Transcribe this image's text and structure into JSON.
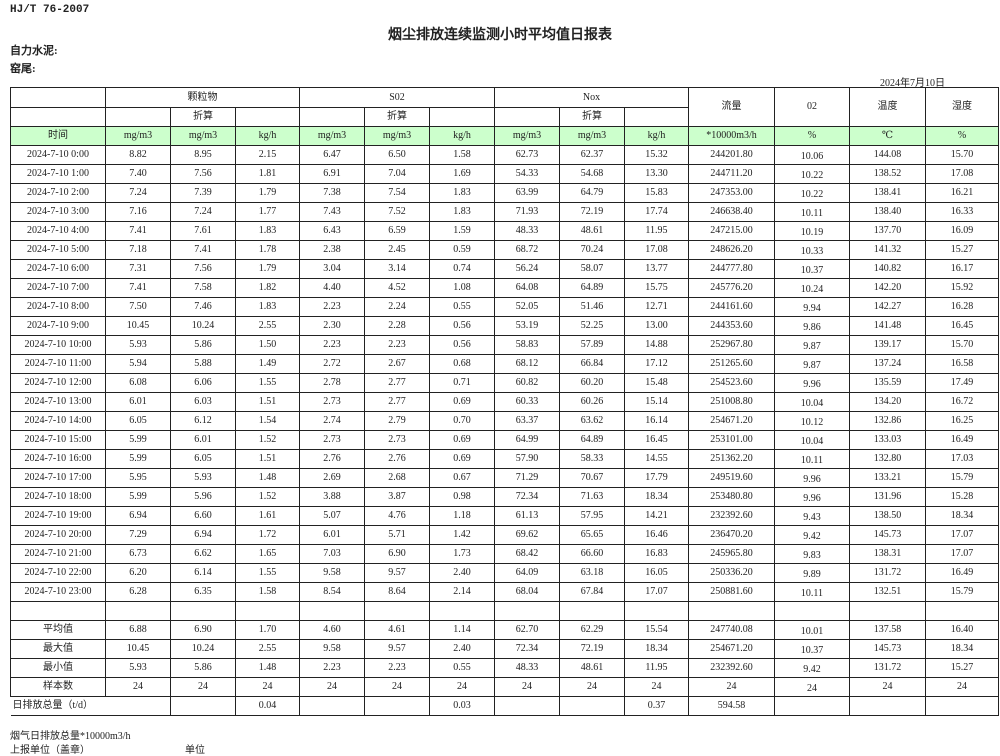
{
  "header": {
    "standard": "HJ/T  76-2007",
    "title": "烟尘排放连续监测小时平均值日报表",
    "company": "自力水泥:",
    "kiln": "窑尾:",
    "date": "2024年7月10日"
  },
  "table": {
    "groups": {
      "particulate": "颗粒物",
      "so2": "S02",
      "nox": "Nox",
      "flow": "流量",
      "o2": "02",
      "temp": "温度",
      "humidity": "湿度"
    },
    "converted_label": "折算",
    "units": [
      "时间",
      "mg/m3",
      "mg/m3",
      "kg/h",
      "mg/m3",
      "mg/m3",
      "kg/h",
      "mg/m3",
      "mg/m3",
      "kg/h",
      "*10000m3/h",
      "%",
      "℃",
      "%"
    ],
    "rows": [
      [
        "2024-7-10 0:00",
        "8.82",
        "8.95",
        "2.15",
        "6.47",
        "6.50",
        "1.58",
        "62.73",
        "62.37",
        "15.32",
        "244201.80",
        "10.06",
        "144.08",
        "15.70"
      ],
      [
        "2024-7-10 1:00",
        "7.40",
        "7.56",
        "1.81",
        "6.91",
        "7.04",
        "1.69",
        "54.33",
        "54.68",
        "13.30",
        "244711.20",
        "10.22",
        "138.52",
        "17.08"
      ],
      [
        "2024-7-10 2:00",
        "7.24",
        "7.39",
        "1.79",
        "7.38",
        "7.54",
        "1.83",
        "63.99",
        "64.79",
        "15.83",
        "247353.00",
        "10.22",
        "138.41",
        "16.21"
      ],
      [
        "2024-7-10 3:00",
        "7.16",
        "7.24",
        "1.77",
        "7.43",
        "7.52",
        "1.83",
        "71.93",
        "72.19",
        "17.74",
        "246638.40",
        "10.11",
        "138.40",
        "16.33"
      ],
      [
        "2024-7-10 4:00",
        "7.41",
        "7.61",
        "1.83",
        "6.43",
        "6.59",
        "1.59",
        "48.33",
        "48.61",
        "11.95",
        "247215.00",
        "10.19",
        "137.70",
        "16.09"
      ],
      [
        "2024-7-10 5:00",
        "7.18",
        "7.41",
        "1.78",
        "2.38",
        "2.45",
        "0.59",
        "68.72",
        "70.24",
        "17.08",
        "248626.20",
        "10.33",
        "141.32",
        "15.27"
      ],
      [
        "2024-7-10 6:00",
        "7.31",
        "7.56",
        "1.79",
        "3.04",
        "3.14",
        "0.74",
        "56.24",
        "58.07",
        "13.77",
        "244777.80",
        "10.37",
        "140.82",
        "16.17"
      ],
      [
        "2024-7-10 7:00",
        "7.41",
        "7.58",
        "1.82",
        "4.40",
        "4.52",
        "1.08",
        "64.08",
        "64.89",
        "15.75",
        "245776.20",
        "10.24",
        "142.20",
        "15.92"
      ],
      [
        "2024-7-10 8:00",
        "7.50",
        "7.46",
        "1.83",
        "2.23",
        "2.24",
        "0.55",
        "52.05",
        "51.46",
        "12.71",
        "244161.60",
        "9.94",
        "142.27",
        "16.28"
      ],
      [
        "2024-7-10 9:00",
        "10.45",
        "10.24",
        "2.55",
        "2.30",
        "2.28",
        "0.56",
        "53.19",
        "52.25",
        "13.00",
        "244353.60",
        "9.86",
        "141.48",
        "16.45"
      ],
      [
        "2024-7-10 10:00",
        "5.93",
        "5.86",
        "1.50",
        "2.23",
        "2.23",
        "0.56",
        "58.83",
        "57.89",
        "14.88",
        "252967.80",
        "9.87",
        "139.17",
        "15.70"
      ],
      [
        "2024-7-10 11:00",
        "5.94",
        "5.88",
        "1.49",
        "2.72",
        "2.67",
        "0.68",
        "68.12",
        "66.84",
        "17.12",
        "251265.60",
        "9.87",
        "137.24",
        "16.58"
      ],
      [
        "2024-7-10 12:00",
        "6.08",
        "6.06",
        "1.55",
        "2.78",
        "2.77",
        "0.71",
        "60.82",
        "60.20",
        "15.48",
        "254523.60",
        "9.96",
        "135.59",
        "17.49"
      ],
      [
        "2024-7-10 13:00",
        "6.01",
        "6.03",
        "1.51",
        "2.73",
        "2.77",
        "0.69",
        "60.33",
        "60.26",
        "15.14",
        "251008.80",
        "10.04",
        "134.20",
        "16.72"
      ],
      [
        "2024-7-10 14:00",
        "6.05",
        "6.12",
        "1.54",
        "2.74",
        "2.79",
        "0.70",
        "63.37",
        "63.62",
        "16.14",
        "254671.20",
        "10.12",
        "132.86",
        "16.25"
      ],
      [
        "2024-7-10 15:00",
        "5.99",
        "6.01",
        "1.52",
        "2.73",
        "2.73",
        "0.69",
        "64.99",
        "64.89",
        "16.45",
        "253101.00",
        "10.04",
        "133.03",
        "16.49"
      ],
      [
        "2024-7-10 16:00",
        "5.99",
        "6.05",
        "1.51",
        "2.76",
        "2.76",
        "0.69",
        "57.90",
        "58.33",
        "14.55",
        "251362.20",
        "10.11",
        "132.80",
        "17.03"
      ],
      [
        "2024-7-10 17:00",
        "5.95",
        "5.93",
        "1.48",
        "2.69",
        "2.68",
        "0.67",
        "71.29",
        "70.67",
        "17.79",
        "249519.60",
        "9.96",
        "133.21",
        "15.79"
      ],
      [
        "2024-7-10 18:00",
        "5.99",
        "5.96",
        "1.52",
        "3.88",
        "3.87",
        "0.98",
        "72.34",
        "71.63",
        "18.34",
        "253480.80",
        "9.96",
        "131.96",
        "15.28"
      ],
      [
        "2024-7-10 19:00",
        "6.94",
        "6.60",
        "1.61",
        "5.07",
        "4.76",
        "1.18",
        "61.13",
        "57.95",
        "14.21",
        "232392.60",
        "9.43",
        "138.50",
        "18.34"
      ],
      [
        "2024-7-10 20:00",
        "7.29",
        "6.94",
        "1.72",
        "6.01",
        "5.71",
        "1.42",
        "69.62",
        "65.65",
        "16.46",
        "236470.20",
        "9.42",
        "145.73",
        "17.07"
      ],
      [
        "2024-7-10 21:00",
        "6.73",
        "6.62",
        "1.65",
        "7.03",
        "6.90",
        "1.73",
        "68.42",
        "66.60",
        "16.83",
        "245965.80",
        "9.83",
        "138.31",
        "17.07"
      ],
      [
        "2024-7-10 22:00",
        "6.20",
        "6.14",
        "1.55",
        "9.58",
        "9.57",
        "2.40",
        "64.09",
        "63.18",
        "16.05",
        "250336.20",
        "9.89",
        "131.72",
        "16.49"
      ],
      [
        "2024-7-10 23:00",
        "6.28",
        "6.35",
        "1.58",
        "8.54",
        "8.64",
        "2.14",
        "68.04",
        "67.84",
        "17.07",
        "250881.60",
        "10.11",
        "132.51",
        "15.79"
      ]
    ],
    "stats": [
      [
        "平均值",
        "6.88",
        "6.90",
        "1.70",
        "4.60",
        "4.61",
        "1.14",
        "62.70",
        "62.29",
        "15.54",
        "247740.08",
        "10.01",
        "137.58",
        "16.40"
      ],
      [
        "最大值",
        "10.45",
        "10.24",
        "2.55",
        "9.58",
        "9.57",
        "2.40",
        "72.34",
        "72.19",
        "18.34",
        "254671.20",
        "10.37",
        "145.73",
        "18.34"
      ],
      [
        "最小值",
        "5.93",
        "5.86",
        "1.48",
        "2.23",
        "2.23",
        "0.55",
        "48.33",
        "48.61",
        "11.95",
        "232392.60",
        "9.42",
        "131.72",
        "15.27"
      ],
      [
        "样本数",
        "24",
        "24",
        "24",
        "24",
        "24",
        "24",
        "24",
        "24",
        "24",
        "24",
        "24",
        "24",
        "24"
      ]
    ],
    "daily_total": {
      "label": "日排放总量（t/d）",
      "values": [
        "",
        "0.04",
        "",
        "",
        "0.03",
        "",
        "",
        "0.37",
        "594.58",
        "",
        "",
        ""
      ]
    }
  },
  "footer": {
    "flue_gas_total": "烟气日排放总量*10000m3/h",
    "reporting_unit": "上报单位（盖章）",
    "unit": "单位"
  }
}
